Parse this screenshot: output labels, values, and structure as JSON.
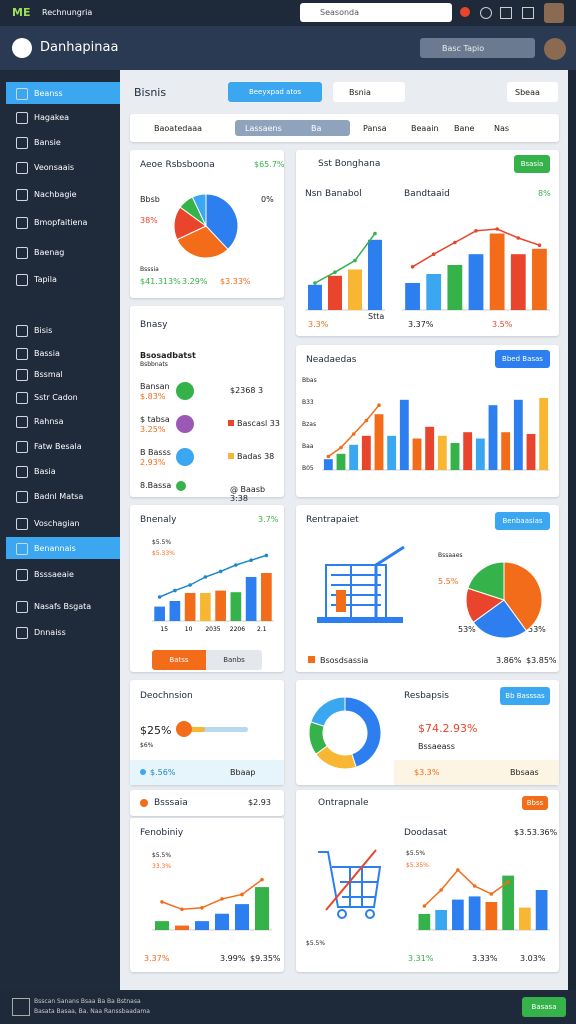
{
  "topbar": {
    "logo": "ME",
    "brand": "Rechnungria",
    "search": "Seasonda"
  },
  "header": {
    "title": "Danhapinaa",
    "search": "Basc Tapio"
  },
  "sidebar": {
    "items": [
      "Beanss",
      "Hagakea",
      "Bansie",
      "Veonsaais",
      "Nachbagie",
      "Bmopfaitiena",
      "Baenag",
      "Tapila",
      "Bisis",
      "Bassia",
      "Bssmal",
      "Sstr Cadon",
      "Rahnsa",
      "Fatw Besala",
      "Basia",
      "Badnl Matsa",
      "Voschagian",
      "Benannais",
      "Bsssaeaie",
      "Nasafs Bsgata",
      "Dnnaiss"
    ],
    "active": [
      0,
      17
    ]
  },
  "toolbar": {
    "title": "Bisnis",
    "button": "Beeyxpad atos",
    "dropdown": "Bsnia",
    "sort": "Sbeaa"
  },
  "tabs": {
    "lead": "Baoatedaaa",
    "segment": [
      "Lassaens",
      "Ba"
    ],
    "items": [
      "Pansa",
      "Beaain",
      "Bane",
      "Nas"
    ]
  },
  "panels": {
    "p1": {
      "title": "Aeoe Rsbsboona",
      "stat": "$65.7%",
      "labels": [
        "Bbsb",
        "38%",
        "0%",
        "Bsssia"
      ],
      "footer": [
        "$41.313%",
        "3.29%",
        "$3.33%"
      ],
      "pie": {
        "values": [
          38,
          30,
          17,
          8,
          7
        ],
        "colors": [
          "#2d7ff0",
          "#f36c1a",
          "#e8452c",
          "#35b34a",
          "#3aa7f0"
        ]
      }
    },
    "p2": {
      "title": "Sst Bonghana",
      "chip": "Bsasia",
      "charts": [
        {
          "title": "Nsn Banabol",
          "legend": [
            "3.3%",
            "Stta"
          ],
          "ylim": [
            0,
            100
          ],
          "bars": [
            28,
            38,
            45,
            78
          ],
          "colors": [
            "#2d7ff0",
            "#e8452c",
            "#f7b733",
            "#2d7ff0"
          ],
          "line": [
            30,
            42,
            55,
            85
          ],
          "line_color": "#35b34a"
        },
        {
          "title": "Bandtaaid",
          "stat": "8%",
          "legend": [
            "3.37%",
            "3.5%"
          ],
          "ylim": [
            0,
            100
          ],
          "bars": [
            30,
            40,
            50,
            62,
            85,
            62,
            68
          ],
          "colors": [
            "#2d7ff0",
            "#3aa7f0",
            "#35b34a",
            "#2d7ff0",
            "#f36c1a",
            "#e8452c",
            "#f36c1a"
          ],
          "line": [
            48,
            62,
            75,
            88,
            90,
            80,
            72
          ],
          "line_color": "#e8452c"
        }
      ]
    },
    "p3": {
      "title": "Bnasy",
      "sub": [
        "Bsosadbatst",
        "Bsbbnats"
      ],
      "rows": [
        {
          "name": "Bansan",
          "value": "$.83%",
          "right": "$2368 3",
          "dot": "#35b34a",
          "tag": ""
        },
        {
          "name": "$ tabsa",
          "value": "3.25%",
          "right": "Bascasl 33",
          "dot": "#9b59b6",
          "tag": "#e8452c"
        },
        {
          "name": "B Basss",
          "value": "2.93%",
          "right": "Badas 38",
          "dot": "#3aa7f0",
          "tag": "#f7b733"
        },
        {
          "name": "8.Bassa",
          "value": "",
          "right": "@ Baasb 3:38",
          "dot": "#35b34a",
          "tag": ""
        }
      ]
    },
    "p4": {
      "title": "Neadaedas",
      "button": "Bbed Basas",
      "yaxis": [
        "Bbas",
        "B33",
        "Bzas",
        "Baa",
        "B05"
      ],
      "ylim": [
        0,
        100
      ],
      "bars": [
        12,
        18,
        28,
        38,
        62,
        38,
        78,
        35,
        48,
        38,
        30,
        42,
        35,
        72,
        42,
        78,
        40,
        80
      ],
      "colors": [
        "#2d7ff0",
        "#35b34a",
        "#3aa7f0",
        "#e8452c",
        "#f36c1a",
        "#3aa7f0",
        "#2d7ff0",
        "#f36c1a",
        "#e8452c",
        "#f7b733",
        "#35b34a",
        "#e8452c",
        "#3aa7f0",
        "#2d7ff0",
        "#f36c1a",
        "#2d7ff0",
        "#e8452c",
        "#f7b733"
      ],
      "line": [
        15,
        25,
        40,
        55,
        72,
        null,
        null,
        null,
        null,
        null,
        null,
        null,
        null,
        null,
        null,
        null,
        null,
        null
      ],
      "line_color": "#f36c1a"
    },
    "p5": {
      "title": "Bnenaly",
      "stat": "3.7%",
      "labels": [
        "$5.5%",
        "$5.33%"
      ],
      "xlabels": [
        "15",
        "10",
        "2035",
        "2206",
        "2.1"
      ],
      "buttons": [
        "Batss",
        "Banbs"
      ],
      "ylim": [
        0,
        100
      ],
      "bars": [
        18,
        25,
        35,
        35,
        38,
        36,
        55,
        60
      ],
      "colors": [
        "#2d7ff0",
        "#2d7ff0",
        "#f36c1a",
        "#f7b733",
        "#f36c1a",
        "#35b34a",
        "#2d7ff0",
        "#f36c1a"
      ],
      "line": [
        30,
        38,
        45,
        55,
        62,
        70,
        76,
        82
      ],
      "line_color": "#1e88c8"
    },
    "p6": {
      "title": "Rentrapaiet",
      "button": "Benbaasias",
      "labels": [
        "Bssaaes",
        "5.5%",
        "53%",
        "53%"
      ],
      "footer": [
        "Bsosdsassia",
        "3.86%",
        "$3.85%"
      ],
      "pie": {
        "values": [
          40,
          25,
          15,
          20
        ],
        "colors": [
          "#f36c1a",
          "#2d7ff0",
          "#e8452c",
          "#35b34a"
        ]
      }
    },
    "p7": {
      "title": "Deochnsion",
      "value": "$25%",
      "sub": "$6%",
      "slider": 35,
      "strip": [
        "$.56%",
        "Bbaap"
      ]
    },
    "p8": {
      "title": "Resbapsis",
      "button": "Bb Basssas",
      "value": "$74.2.93%",
      "sub": "Bssaeass",
      "strip": [
        "$3.3%",
        "Bbsaas"
      ],
      "donut": {
        "values": [
          45,
          20,
          15,
          20
        ],
        "colors": [
          "#2d7ff0",
          "#f7b733",
          "#35b34a",
          "#3aa7f0"
        ]
      }
    },
    "p9": {
      "title": "Bsssaia",
      "value": "$2.93"
    },
    "p10": {
      "title": "Ontrapnale",
      "button": "Bbss"
    },
    "p11": {
      "title": "Fenobiniy",
      "labels": [
        "$5.5%",
        "33.3%"
      ],
      "legend": [
        "3.37%",
        "3.99%",
        "$9.35%"
      ],
      "ylim": [
        0,
        100
      ],
      "bars": [
        12,
        6,
        12,
        22,
        35,
        58
      ],
      "colors": [
        "#35b34a",
        "#f36c1a",
        "#2d7ff0",
        "#2d7ff0",
        "#2d7ff0",
        "#35b34a"
      ],
      "line": [
        38,
        28,
        30,
        42,
        48,
        68
      ],
      "line_color": "#f36c1a"
    },
    "p12": {
      "title": "Doodasat",
      "stat": "$3.53.36%",
      "labels": [
        "$5.5%",
        "$5.35%"
      ],
      "legend": [
        "3.31%",
        "3.33%",
        "3.03%"
      ],
      "ylim": [
        0,
        100
      ],
      "bars": [
        20,
        25,
        38,
        42,
        35,
        68,
        28,
        50
      ],
      "colors": [
        "#35b34a",
        "#3aa7f0",
        "#2d7ff0",
        "#2d7ff0",
        "#f36c1a",
        "#35b34a",
        "#f7b733",
        "#2d7ff0"
      ],
      "line": [
        30,
        50,
        75,
        55,
        45,
        60,
        null,
        null
      ],
      "line_color": "#f36c1a"
    }
  },
  "footer": {
    "text": [
      "Bsscan Sanans Bsaa Ba Ba Bstnasa",
      "Basata Basaa, Ba. Naa Ranssbaadama"
    ],
    "button": "Basasa"
  }
}
